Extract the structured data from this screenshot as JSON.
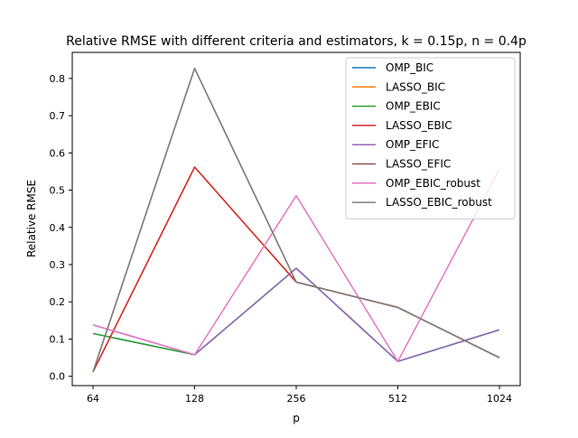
{
  "chart_data": {
    "type": "line",
    "title": "Relative RMSE with different criteria and estimators, k = 0.15p, n = 0.4p",
    "xlabel": "p",
    "ylabel": "Relative RMSE",
    "categories": [
      "64",
      "128",
      "256",
      "512",
      "1024"
    ],
    "ylim": [
      -0.025,
      0.87
    ],
    "yticks": [
      0.0,
      0.1,
      0.2,
      0.3,
      0.4,
      0.5,
      0.6,
      0.7,
      0.8
    ],
    "ytick_labels": [
      "0.0",
      "0.1",
      "0.2",
      "0.3",
      "0.4",
      "0.5",
      "0.6",
      "0.7",
      "0.8"
    ],
    "grid": false,
    "legend_position": "top-right",
    "series": [
      {
        "name": "OMP_BIC",
        "color": "#1f77b4",
        "values": [
          0.115,
          0.058,
          0.29,
          0.04,
          0.125
        ]
      },
      {
        "name": "LASSO_BIC",
        "color": "#ff7f0e",
        "values": [
          0.012,
          0.562,
          0.253,
          0.185,
          0.05
        ]
      },
      {
        "name": "OMP_EBIC",
        "color": "#2ca02c",
        "values": [
          0.115,
          0.058,
          0.29,
          0.04,
          0.125
        ]
      },
      {
        "name": "LASSO_EBIC",
        "color": "#d62728",
        "values": [
          0.012,
          0.562,
          0.253,
          0.185,
          0.05
        ]
      },
      {
        "name": "OMP_EFIC",
        "color": "#9467bd",
        "values": [
          0.138,
          0.058,
          0.29,
          0.04,
          0.125
        ]
      },
      {
        "name": "LASSO_EFIC",
        "color": "#8c564b",
        "values": [
          0.012,
          0.827,
          0.253,
          0.185,
          0.05
        ]
      },
      {
        "name": "OMP_EBIC_robust",
        "color": "#e377c2",
        "values": [
          0.138,
          0.058,
          0.485,
          0.04,
          0.556
        ]
      },
      {
        "name": "LASSO_EBIC_robust",
        "color": "#7f7f7f",
        "values": [
          0.012,
          0.827,
          0.253,
          0.185,
          0.05
        ]
      }
    ]
  }
}
